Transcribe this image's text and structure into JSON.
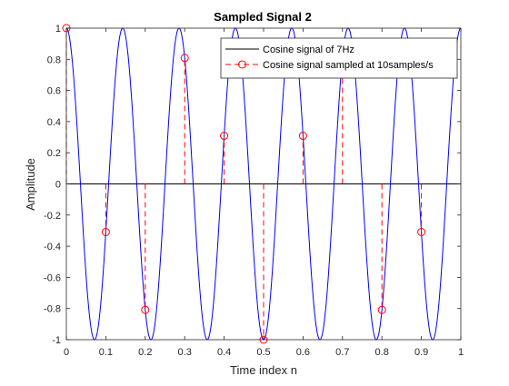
{
  "chart_data": {
    "type": "line",
    "title": "Sampled Signal 2",
    "xlabel": "Time index n",
    "ylabel": "Amplitude",
    "xlim": [
      0,
      1
    ],
    "ylim": [
      -1,
      1
    ],
    "xticks": [
      0,
      0.1,
      0.2,
      0.3,
      0.4,
      0.5,
      0.6,
      0.7,
      0.8,
      0.9,
      1
    ],
    "xtick_labels": [
      "0",
      "0.1",
      "0.2",
      "0.3",
      "0.4",
      "0.5",
      "0.6",
      "0.7",
      "0.8",
      "0.9",
      "1"
    ],
    "yticks": [
      -1,
      -0.8,
      -0.6,
      -0.4,
      -0.2,
      0,
      0.2,
      0.4,
      0.6,
      0.8,
      1
    ],
    "ytick_labels": [
      "-1",
      "-0.8",
      "-0.6",
      "-0.4",
      "-0.2",
      "0",
      "0.2",
      "0.4",
      "0.6",
      "0.8",
      "1"
    ],
    "grid": false,
    "legend_position": "top-right",
    "series": [
      {
        "name": "Cosine signal of 7Hz",
        "style": "continuous line",
        "frequency_hz": 7,
        "function": "cos",
        "color": "#0000ff",
        "legend_color": "#000000"
      },
      {
        "name": "Cosine signal sampled at 10samples/s",
        "style": "dashed stem with circle markers",
        "color": "#ff0000",
        "x": [
          0,
          0.1,
          0.2,
          0.3,
          0.4,
          0.5,
          0.6,
          0.7,
          0.8,
          0.9
        ],
        "values": [
          1,
          -0.309,
          -0.809,
          0.809,
          0.309,
          -1,
          0.309,
          0.809,
          -0.809,
          -0.309
        ]
      }
    ],
    "zero_line_color": "#000000"
  }
}
